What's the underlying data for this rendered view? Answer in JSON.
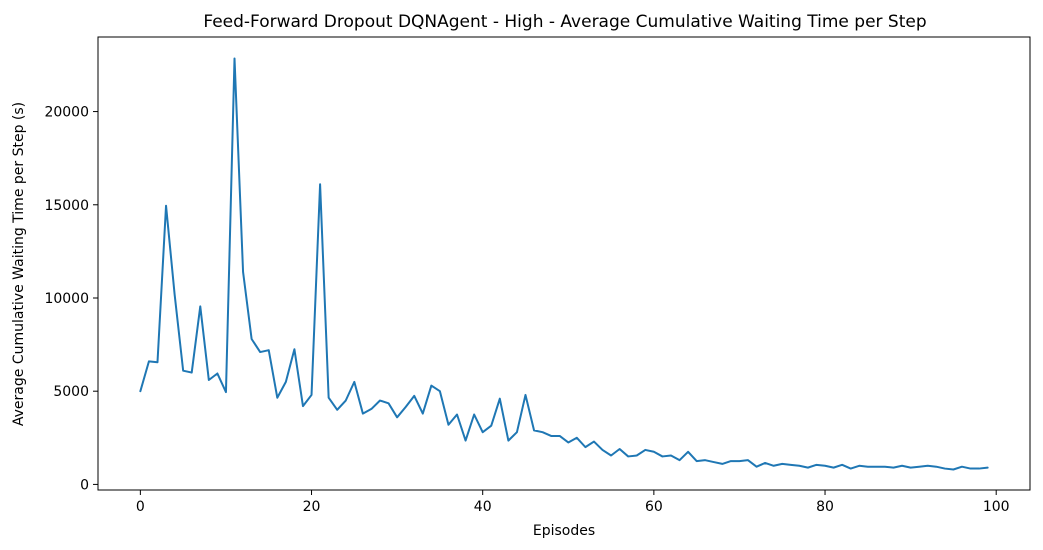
{
  "chart_data": {
    "type": "line",
    "title": "Feed-Forward Dropout DQNAgent - High - Average Cumulative Waiting Time per Step",
    "xlabel": "Episodes",
    "ylabel": "Average Cumulative Waiting Time per Step (s)",
    "xlim": [
      -4.95,
      103.95
    ],
    "ylim": [
      -300,
      24000
    ],
    "xticks": [
      0,
      20,
      40,
      60,
      80,
      100
    ],
    "yticks": [
      0,
      5000,
      10000,
      15000,
      20000
    ],
    "xtick_labels": [
      "0",
      "20",
      "40",
      "60",
      "80",
      "100"
    ],
    "ytick_labels": [
      "0",
      "5000",
      "10000",
      "15000",
      "20000"
    ],
    "grid": false,
    "legend": "none",
    "series": [
      {
        "color": "#1f77b4",
        "x": [
          0,
          1,
          2,
          3,
          4,
          5,
          6,
          7,
          8,
          9,
          10,
          11,
          12,
          13,
          14,
          15,
          16,
          17,
          18,
          19,
          20,
          21,
          22,
          23,
          24,
          25,
          26,
          27,
          28,
          29,
          30,
          31,
          32,
          33,
          34,
          35,
          36,
          37,
          38,
          39,
          40,
          41,
          42,
          43,
          44,
          45,
          46,
          47,
          48,
          49,
          50,
          51,
          52,
          53,
          54,
          55,
          56,
          57,
          58,
          59,
          60,
          61,
          62,
          63,
          64,
          65,
          66,
          67,
          68,
          69,
          70,
          71,
          72,
          73,
          74,
          75,
          76,
          77,
          78,
          79,
          80,
          81,
          82,
          83,
          84,
          85,
          86,
          87,
          88,
          89,
          90,
          91,
          92,
          93,
          94,
          95,
          96,
          97,
          98,
          99
        ],
        "y": [
          5000,
          6600,
          6550,
          14950,
          10200,
          6100,
          6000,
          9550,
          5600,
          5950,
          4950,
          22850,
          11400,
          7800,
          7100,
          7200,
          4650,
          5500,
          7250,
          4200,
          4800,
          16100,
          4650,
          4000,
          4500,
          5500,
          3800,
          4050,
          4500,
          4350,
          3600,
          4150,
          4750,
          3800,
          5300,
          5000,
          3200,
          3750,
          2350,
          3750,
          2800,
          3150,
          4600,
          2350,
          2800,
          4800,
          2900,
          2800,
          2600,
          2600,
          2250,
          2500,
          2000,
          2300,
          1850,
          1550,
          1900,
          1500,
          1550,
          1850,
          1750,
          1500,
          1550,
          1300,
          1750,
          1250,
          1300,
          1200,
          1100,
          1250,
          1250,
          1300,
          950,
          1150,
          1000,
          1100,
          1050,
          1000,
          900,
          1050,
          1000,
          900,
          1050,
          850,
          1000,
          950,
          950,
          950,
          900,
          1000,
          900,
          950,
          1000,
          950,
          850,
          800,
          950,
          850,
          850,
          900
        ]
      }
    ]
  }
}
